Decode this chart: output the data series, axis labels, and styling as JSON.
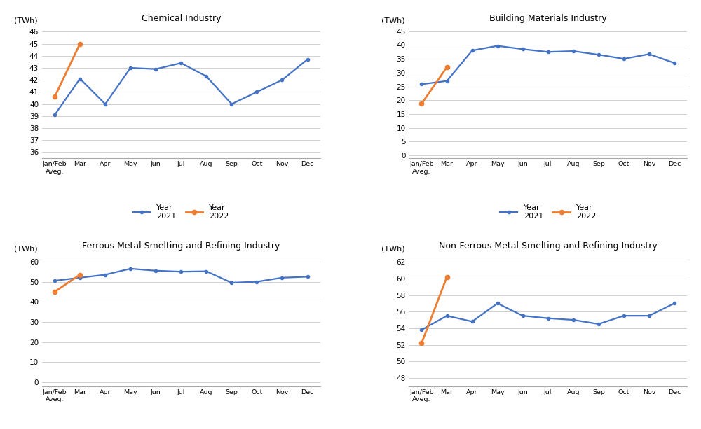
{
  "x_labels": [
    "Jan/Feb\nAveg.",
    "Mar",
    "Apr",
    "May",
    "Jun",
    "Jul",
    "Aug",
    "Sep",
    "Oct",
    "Nov",
    "Dec"
  ],
  "charts": [
    {
      "title": "Chemical Industry",
      "y2021": [
        39.1,
        42.1,
        40.0,
        43.0,
        42.9,
        43.4,
        42.3,
        40.0,
        41.0,
        42.0,
        43.7
      ],
      "y2022": [
        40.6,
        45.0,
        null,
        null,
        null,
        null,
        null,
        null,
        null,
        null,
        null
      ],
      "yticks": [
        36,
        37,
        38,
        39,
        40,
        41,
        42,
        43,
        44,
        45,
        46
      ],
      "ylim": [
        35.5,
        46.5
      ]
    },
    {
      "title": "Building Materials Industry",
      "y2021": [
        25.8,
        27.0,
        38.0,
        39.7,
        38.5,
        37.5,
        37.8,
        36.5,
        35.0,
        36.7,
        33.5
      ],
      "y2022": [
        18.8,
        32.0,
        null,
        null,
        null,
        null,
        null,
        null,
        null,
        null,
        null
      ],
      "yticks": [
        0,
        5,
        10,
        15,
        20,
        25,
        30,
        35,
        40,
        45
      ],
      "ylim": [
        -1,
        47
      ]
    },
    {
      "title": "Ferrous Metal Smelting and Refining Industry",
      "y2021": [
        50.5,
        52.0,
        53.5,
        56.5,
        55.5,
        55.0,
        55.2,
        49.5,
        50.0,
        52.0,
        52.5
      ],
      "y2022": [
        45.0,
        53.5,
        null,
        null,
        null,
        null,
        null,
        null,
        null,
        null,
        null
      ],
      "yticks": [
        0,
        10,
        20,
        30,
        40,
        50,
        60
      ],
      "ylim": [
        -2,
        64
      ]
    },
    {
      "title": "Non-Ferrous Metal Smelting and Refining Industry",
      "y2021": [
        53.8,
        55.5,
        54.8,
        57.0,
        55.5,
        55.2,
        55.0,
        54.5,
        55.5,
        55.5,
        57.0
      ],
      "y2022": [
        52.2,
        60.2,
        null,
        null,
        null,
        null,
        null,
        null,
        null,
        null,
        null
      ],
      "yticks": [
        48,
        50,
        52,
        54,
        56,
        58,
        60,
        62
      ],
      "ylim": [
        47,
        63
      ]
    }
  ],
  "color_2021": "#4472C4",
  "color_2022": "#ED7D31",
  "ylabel": "(TWh)",
  "legend_year2021": "Year\n2021",
  "legend_year2022": "Year\n2022",
  "bg_color": "#ffffff",
  "grid_color": "#d0d0d0"
}
